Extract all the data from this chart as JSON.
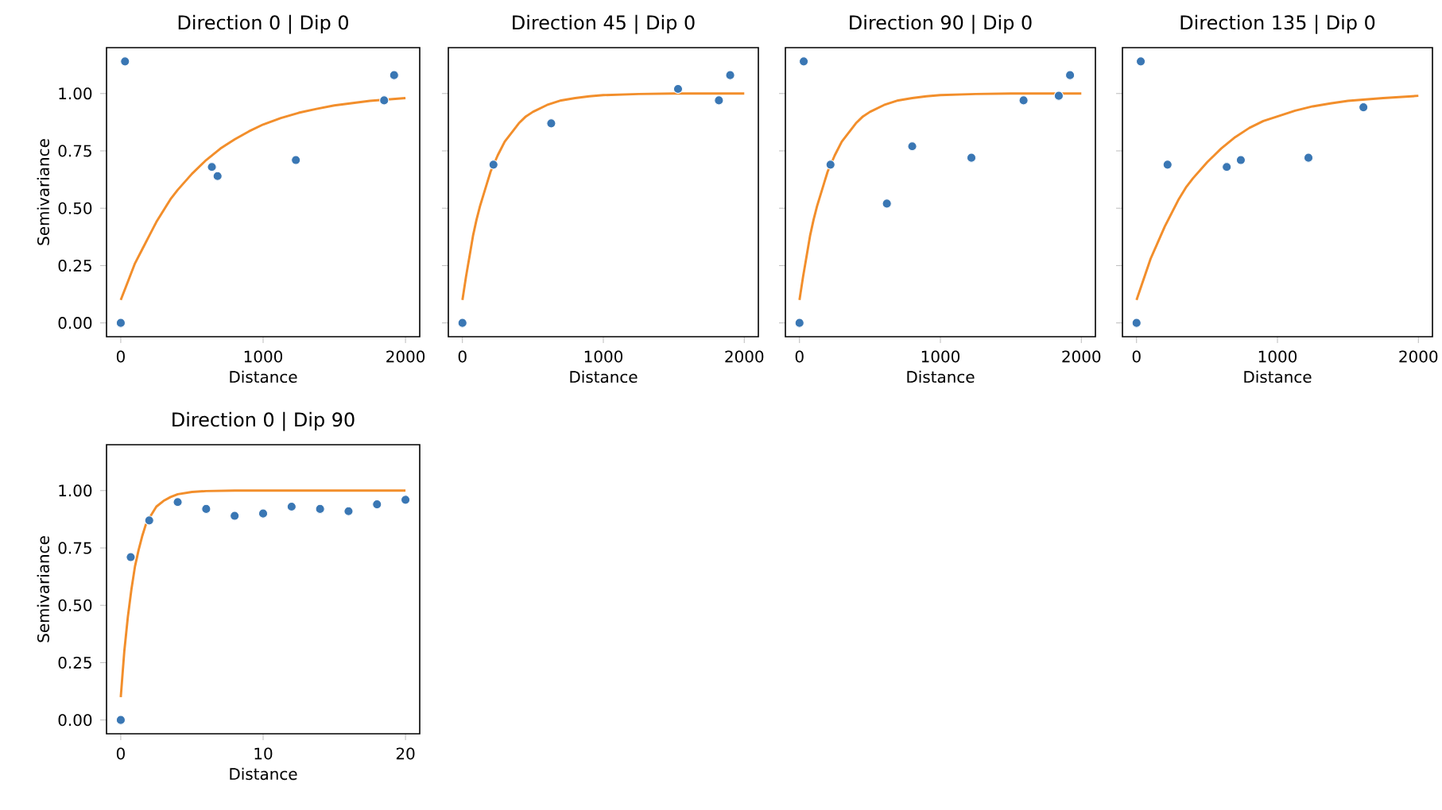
{
  "chart_data": [
    {
      "type": "scatter",
      "title": "Direction 0 | Dip 0",
      "xlabel": "Distance",
      "ylabel": "Semivariance",
      "xlim": [
        -100,
        2100
      ],
      "xticks": [
        0,
        1000,
        2000
      ],
      "ylim": [
        -0.06,
        1.2
      ],
      "yticks": [
        {
          "value": 0,
          "label": "0.00"
        },
        {
          "value": 0.25,
          "label": "0.25"
        },
        {
          "value": 0.5,
          "label": "0.50"
        },
        {
          "value": 0.75,
          "label": "0.75"
        },
        {
          "value": 1,
          "label": "1.00"
        }
      ],
      "grid": false,
      "series": [
        {
          "marker": "circle",
          "color": "#3a77b4",
          "x": [
            0,
            30,
            640,
            680,
            1230,
            1850,
            1920
          ],
          "values": [
            0,
            1.14,
            0.68,
            0.64,
            0.71,
            0.97,
            1.08
          ]
        },
        {
          "type": "line",
          "marker": "none",
          "color": "#f28e2b",
          "x": [
            0,
            50,
            100,
            150,
            200,
            250,
            300,
            350,
            400,
            500,
            600,
            700,
            800,
            900,
            1000,
            1125,
            1250,
            1375,
            1500,
            1750,
            2000
          ],
          "values": [
            0.1,
            0.18,
            0.26,
            0.32,
            0.38,
            0.44,
            0.49,
            0.54,
            0.58,
            0.65,
            0.71,
            0.76,
            0.8,
            0.835,
            0.865,
            0.893,
            0.916,
            0.933,
            0.948,
            0.968,
            0.98
          ]
        }
      ]
    },
    {
      "type": "scatter",
      "title": "Direction 45 | Dip 0",
      "xlabel": "Distance",
      "xlim": [
        -100,
        2100
      ],
      "xticks": [
        0,
        1000,
        2000
      ],
      "ylim": [
        -0.06,
        1.2
      ],
      "yticks": [
        {
          "value": 0,
          "label": null
        },
        {
          "value": 0.25,
          "label": null
        },
        {
          "value": 0.5,
          "label": null
        },
        {
          "value": 0.75,
          "label": null
        },
        {
          "value": 1,
          "label": null
        }
      ],
      "tick_labels": "x",
      "grid": false,
      "series": [
        {
          "marker": "circle",
          "color": "#3a77b4",
          "x": [
            0,
            220,
            630,
            1530,
            1820,
            1900
          ],
          "values": [
            0,
            0.69,
            0.87,
            1.02,
            0.97,
            1.08
          ]
        },
        {
          "type": "line",
          "marker": "none",
          "color": "#f28e2b",
          "x": [
            0,
            25,
            50,
            75,
            100,
            125,
            150,
            175,
            200,
            250,
            300,
            350,
            400,
            450,
            500,
            600,
            700,
            800,
            900,
            1000,
            1250,
            1500,
            2000
          ],
          "values": [
            0.1,
            0.2,
            0.29,
            0.38,
            0.45,
            0.51,
            0.56,
            0.61,
            0.66,
            0.73,
            0.79,
            0.83,
            0.87,
            0.9,
            0.92,
            0.95,
            0.97,
            0.98,
            0.988,
            0.993,
            0.998,
            1.0,
            1.0
          ]
        }
      ]
    },
    {
      "type": "scatter",
      "title": "Direction 90 | Dip 0",
      "xlabel": "Distance",
      "xlim": [
        -100,
        2100
      ],
      "xticks": [
        0,
        1000,
        2000
      ],
      "ylim": [
        -0.06,
        1.2
      ],
      "yticks": [
        {
          "value": 0,
          "label": null
        },
        {
          "value": 0.25,
          "label": null
        },
        {
          "value": 0.5,
          "label": null
        },
        {
          "value": 0.75,
          "label": null
        },
        {
          "value": 1,
          "label": null
        }
      ],
      "tick_labels": "x",
      "grid": false,
      "series": [
        {
          "marker": "circle",
          "color": "#3a77b4",
          "x": [
            0,
            30,
            220,
            620,
            800,
            1220,
            1590,
            1840,
            1920
          ],
          "values": [
            0,
            1.14,
            0.69,
            0.52,
            0.77,
            0.72,
            0.97,
            0.99,
            1.08
          ]
        },
        {
          "type": "line",
          "marker": "none",
          "color": "#f28e2b",
          "x": [
            0,
            25,
            50,
            75,
            100,
            125,
            150,
            175,
            200,
            250,
            300,
            350,
            400,
            450,
            500,
            600,
            700,
            800,
            900,
            1000,
            1250,
            1500,
            2000
          ],
          "values": [
            0.1,
            0.2,
            0.29,
            0.38,
            0.45,
            0.51,
            0.56,
            0.61,
            0.66,
            0.73,
            0.79,
            0.83,
            0.87,
            0.9,
            0.92,
            0.95,
            0.97,
            0.98,
            0.988,
            0.993,
            0.998,
            1.0,
            1.0
          ]
        }
      ]
    },
    {
      "type": "scatter",
      "title": "Direction 135 | Dip 0",
      "xlabel": "Distance",
      "xlim": [
        -100,
        2100
      ],
      "xticks": [
        0,
        1000,
        2000
      ],
      "ylim": [
        -0.06,
        1.2
      ],
      "yticks": [
        {
          "value": 0,
          "label": null
        },
        {
          "value": 0.25,
          "label": null
        },
        {
          "value": 0.5,
          "label": null
        },
        {
          "value": 0.75,
          "label": null
        },
        {
          "value": 1,
          "label": null
        }
      ],
      "tick_labels": "x",
      "grid": false,
      "series": [
        {
          "marker": "circle",
          "color": "#3a77b4",
          "x": [
            0,
            30,
            220,
            640,
            740,
            1220,
            1610
          ],
          "values": [
            0,
            1.14,
            0.69,
            0.68,
            0.71,
            0.72,
            0.94
          ]
        },
        {
          "type": "line",
          "marker": "none",
          "color": "#f28e2b",
          "x": [
            0,
            50,
            100,
            150,
            200,
            250,
            300,
            350,
            400,
            500,
            600,
            700,
            800,
            900,
            1000,
            1125,
            1250,
            1375,
            1500,
            1750,
            2000
          ],
          "values": [
            0.1,
            0.19,
            0.28,
            0.35,
            0.42,
            0.48,
            0.54,
            0.59,
            0.63,
            0.7,
            0.76,
            0.81,
            0.85,
            0.88,
            0.9,
            0.925,
            0.944,
            0.957,
            0.968,
            0.98,
            0.99
          ]
        }
      ]
    },
    {
      "type": "scatter",
      "title": "Direction 0 | Dip 90",
      "xlabel": "Distance",
      "ylabel": "Semivariance",
      "xlim": [
        -1,
        21
      ],
      "xticks": [
        0,
        10,
        20
      ],
      "ylim": [
        -0.06,
        1.2
      ],
      "yticks": [
        {
          "value": 0,
          "label": "0.00"
        },
        {
          "value": 0.25,
          "label": "0.25"
        },
        {
          "value": 0.5,
          "label": "0.50"
        },
        {
          "value": 0.75,
          "label": "0.75"
        },
        {
          "value": 1,
          "label": "1.00"
        }
      ],
      "grid": false,
      "series": [
        {
          "marker": "circle",
          "color": "#3a77b4",
          "x": [
            0,
            0.7,
            2,
            4,
            6,
            8,
            10,
            12,
            14,
            16,
            18,
            20
          ],
          "values": [
            0,
            0.71,
            0.87,
            0.95,
            0.92,
            0.89,
            0.9,
            0.93,
            0.92,
            0.91,
            0.94,
            0.96
          ]
        },
        {
          "type": "line",
          "marker": "none",
          "color": "#f28e2b",
          "x": [
            0,
            0.25,
            0.5,
            0.75,
            1,
            1.25,
            1.5,
            1.75,
            2,
            2.5,
            3,
            3.5,
            4,
            5,
            6,
            8,
            10,
            15,
            20
          ],
          "values": [
            0.1,
            0.3,
            0.45,
            0.57,
            0.67,
            0.74,
            0.8,
            0.85,
            0.88,
            0.93,
            0.955,
            0.972,
            0.984,
            0.994,
            0.998,
            1.0,
            1.0,
            1.0,
            1.0
          ]
        }
      ]
    }
  ]
}
